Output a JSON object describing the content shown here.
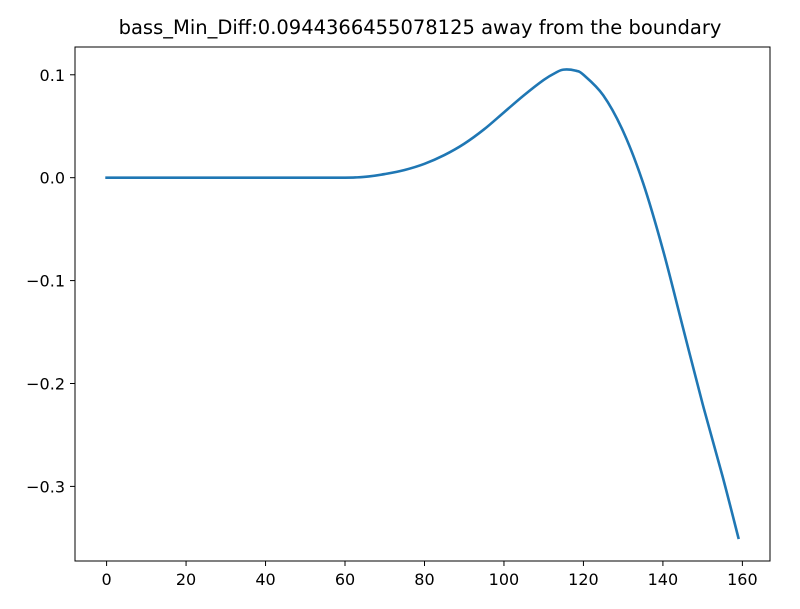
{
  "chart_data": {
    "type": "line",
    "title": "bass_Min_Diff:0.0944366455078125 away from the boundary",
    "xlabel": "",
    "ylabel": "",
    "xlim": [
      -7.95,
      166.95
    ],
    "ylim": [
      -0.3725,
      0.127
    ],
    "xticks": [
      0,
      20,
      40,
      60,
      80,
      100,
      120,
      140,
      160
    ],
    "xtick_labels": [
      "0",
      "20",
      "40",
      "60",
      "80",
      "100",
      "120",
      "140",
      "160"
    ],
    "yticks": [
      0.1,
      0.0,
      -0.1,
      -0.2,
      -0.3
    ],
    "ytick_labels": [
      "0.1",
      "0.0",
      "−0.1",
      "−0.2",
      "−0.3"
    ],
    "grid": false,
    "legend": "none",
    "series": [
      {
        "color": "#1f77b4",
        "x": [
          0,
          10,
          20,
          30,
          40,
          50,
          60,
          63,
          66,
          70,
          75,
          80,
          85,
          90,
          95,
          100,
          105,
          110,
          113,
          115,
          118,
          120,
          125,
          130,
          135,
          140,
          145,
          150,
          155,
          159
        ],
        "y": [
          0,
          0,
          0,
          0,
          0,
          0,
          0,
          0.0003,
          0.0012,
          0.0035,
          0.0075,
          0.0135,
          0.022,
          0.033,
          0.047,
          0.0635,
          0.08,
          0.095,
          0.102,
          0.105,
          0.104,
          0.1,
          0.08,
          0.045,
          -0.005,
          -0.07,
          -0.145,
          -0.22,
          -0.29,
          -0.35
        ]
      }
    ]
  }
}
